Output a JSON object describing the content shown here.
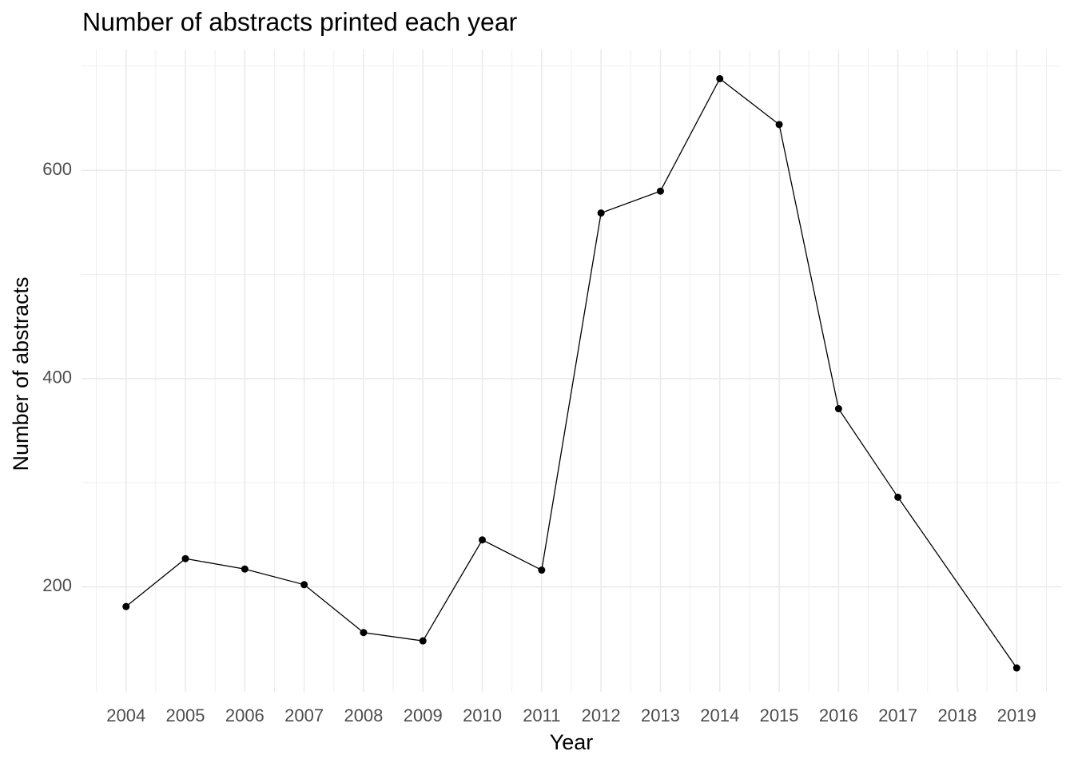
{
  "chart_data": {
    "type": "line",
    "title": "Number of abstracts printed each year",
    "xlabel": "Year",
    "ylabel": "Number of abstracts",
    "x": [
      2004,
      2005,
      2006,
      2007,
      2008,
      2009,
      2010,
      2011,
      2012,
      2013,
      2014,
      2015,
      2016,
      2017,
      2019
    ],
    "values": [
      181,
      227,
      217,
      202,
      156,
      148,
      245,
      216,
      559,
      580,
      688,
      644,
      371,
      286,
      122
    ],
    "color": "#000000",
    "xlim": [
      2003.25,
      2019.75
    ],
    "xticks": [
      2004,
      2005,
      2006,
      2007,
      2008,
      2009,
      2010,
      2011,
      2012,
      2013,
      2014,
      2015,
      2016,
      2017,
      2018,
      2019
    ],
    "xminor": [
      2003.5,
      2004.5,
      2005.5,
      2006.5,
      2007.5,
      2008.5,
      2009.5,
      2010.5,
      2011.5,
      2012.5,
      2013.5,
      2014.5,
      2015.5,
      2016.5,
      2017.5,
      2018.5,
      2019.5
    ],
    "ylim": [
      99,
      716
    ],
    "yticks": [
      200,
      400,
      600
    ],
    "yminor": [
      300,
      500,
      700
    ],
    "grid": true
  }
}
